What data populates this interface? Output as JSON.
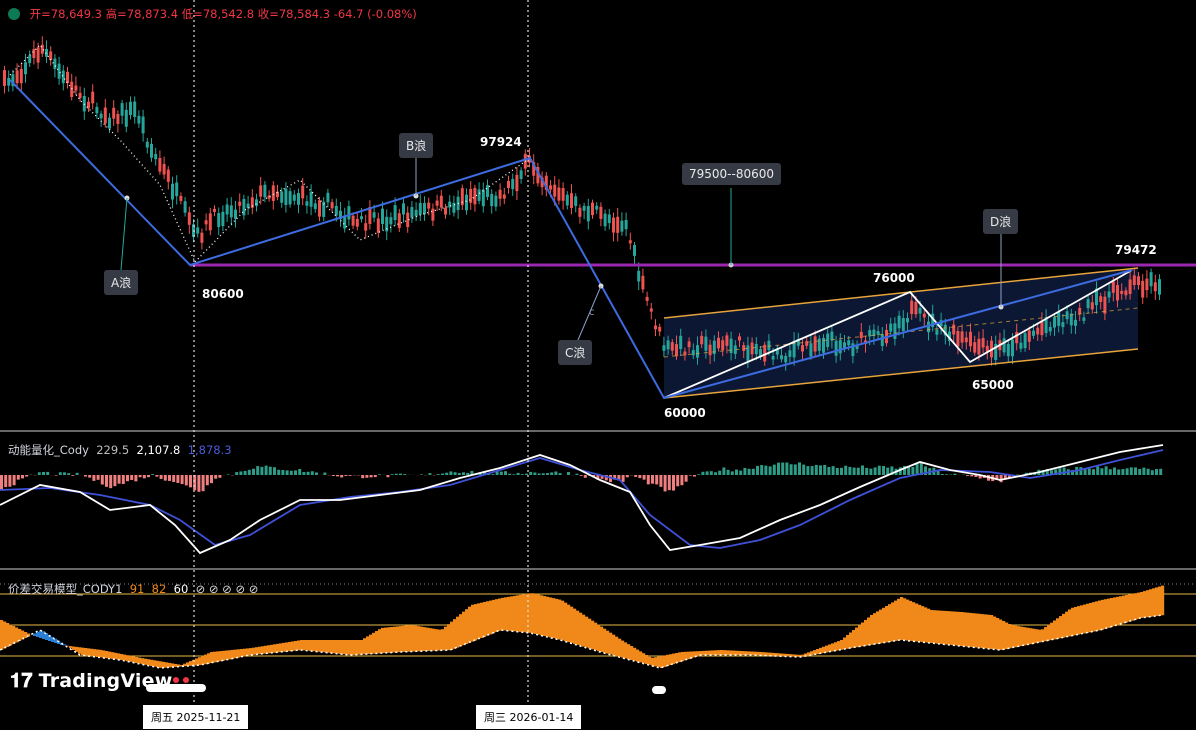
{
  "header": {
    "open_label": "开=78,649.3",
    "high_label": "高=78,873.4",
    "low_label": "低=78,542.8",
    "close_label": "收=78,584.3",
    "change": "-64.7 (-0.08%)"
  },
  "annotations": {
    "wave_a": "A浪",
    "wave_b": "B浪",
    "wave_c": "C浪",
    "wave_d": "D浪",
    "c_small": "c",
    "zone": "79500--80600",
    "p80600": "80600",
    "p97924": "97924",
    "p60000": "60000",
    "p76000": "76000",
    "p65000": "65000",
    "p79472": "79472"
  },
  "indicator1": {
    "name": "动能量化_Cody",
    "v1": "229.5",
    "v2": "2,107.8",
    "v3": "1,878.3"
  },
  "indicator2": {
    "name": "价差交易模型_CODY1",
    "v1": "91",
    "v2": "82",
    "v3": "60",
    "symbols": "⊘ ⊘ ⊘ ⊘ ⊘"
  },
  "crosshair_dates": {
    "left": "周五 2025-11-21",
    "right": "周三 2026-01-14"
  },
  "branding": {
    "logo_text": "TradingView"
  },
  "colors": {
    "up": "#26a69a",
    "down": "#ef5350",
    "wave_line": "#3d6be0",
    "resistance": "#9c27b0",
    "channel": "#e8a43a",
    "fast_line": "#ffffff",
    "slow_line": "#3f51d8",
    "hist_up": "#2e9c86",
    "hist_down": "#f08080",
    "fill_orange": "#f0891a",
    "fill_blue": "#2a7fd4"
  }
}
